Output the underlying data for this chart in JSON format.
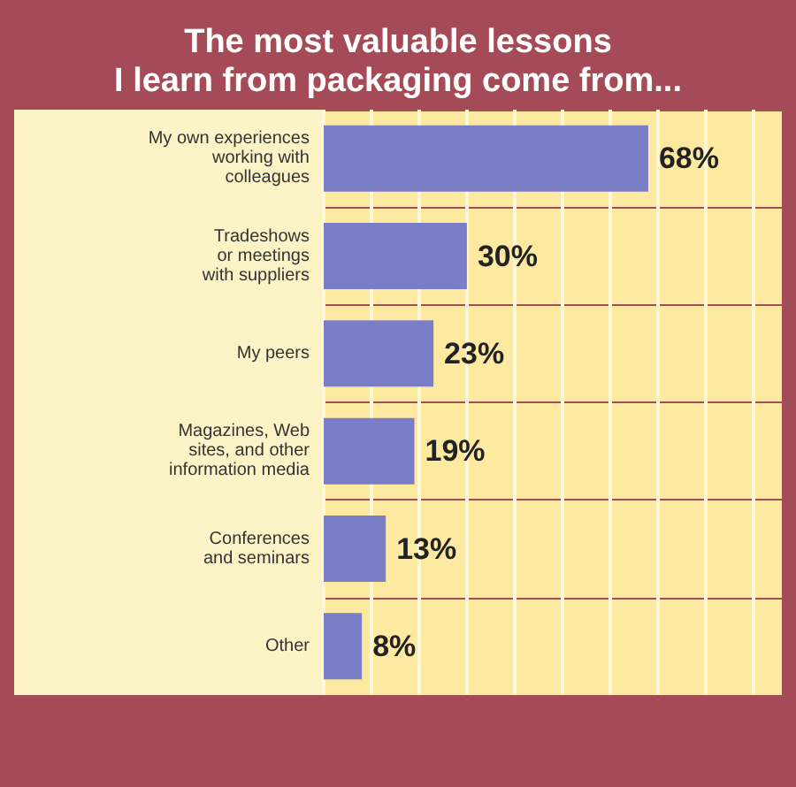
{
  "chart_data": {
    "type": "bar",
    "orientation": "horizontal",
    "title": "The most valuable lessons\nI learn from packaging come from...",
    "categories": [
      "My own experiences\nworking with\ncolleagues",
      "Tradeshows\nor meetings\nwith suppliers",
      "My peers",
      "Magazines, Web\nsites, and other\ninformation media",
      "Conferences\nand seminars",
      "Other"
    ],
    "values": [
      68,
      30,
      23,
      19,
      13,
      8
    ],
    "value_labels": [
      "68%",
      "30%",
      "23%",
      "19%",
      "13%",
      "8%"
    ],
    "color": "#7a7ec6",
    "xlim": [
      0,
      96
    ],
    "xticks": [
      {
        "value": 0,
        "label": null
      },
      {
        "value": 10,
        "label": null
      },
      {
        "value": 20,
        "label": null
      },
      {
        "value": 30,
        "label": null
      },
      {
        "value": 40,
        "label": null
      },
      {
        "value": 50,
        "label": null
      },
      {
        "value": 60,
        "label": null
      },
      {
        "value": 70,
        "label": null
      },
      {
        "value": 80,
        "label": null
      },
      {
        "value": 90,
        "label": null
      }
    ],
    "tick_labels": "y",
    "grid": true
  }
}
